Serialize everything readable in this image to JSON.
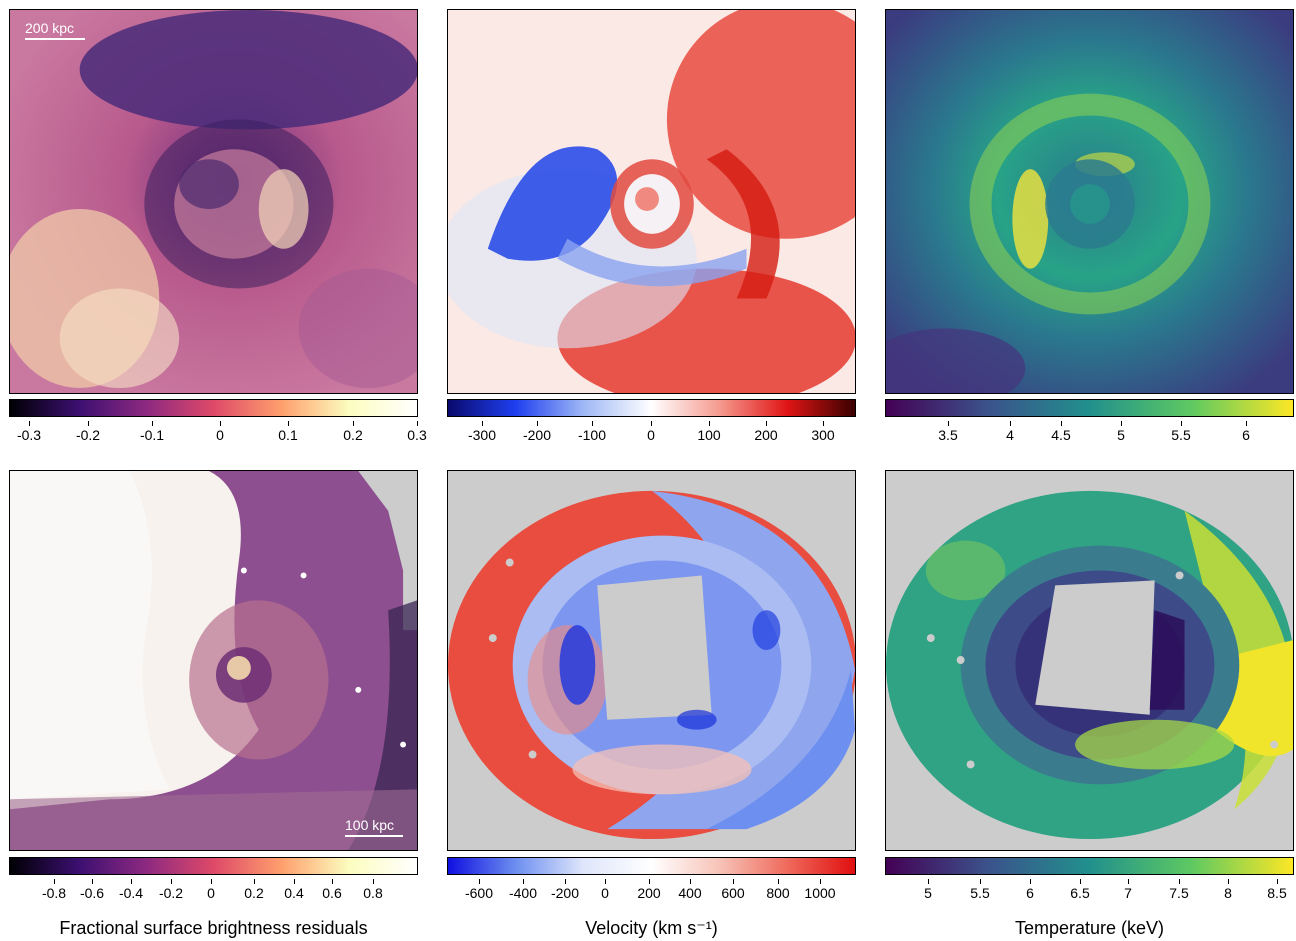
{
  "top_row": {
    "residual_panel": {
      "scale_label": "200 kpc",
      "colorbar_ticks": [
        "-0.3",
        "-0.2",
        "-0.1",
        "0",
        "0.1",
        "0.2",
        "0.3"
      ],
      "colormap": [
        "#000004",
        "#3b0f70",
        "#8c2981",
        "#de4968",
        "#fe9f6d",
        "#fcfdbf",
        "#ffffff"
      ]
    },
    "velocity_panel": {
      "colorbar_ticks": [
        "-300",
        "-200",
        "-100",
        "0",
        "100",
        "200",
        "300"
      ],
      "colormap": [
        "#0a0a6e",
        "#1f3ff0",
        "#9fb8f5",
        "#ffffff",
        "#f59a8f",
        "#e01515",
        "#3a0000"
      ]
    },
    "temperature_panel": {
      "colorbar_ticks": [
        "3.5",
        "4",
        "4.5",
        "5",
        "5.5",
        "6"
      ],
      "colormap": [
        "#440154",
        "#3b528b",
        "#21908d",
        "#5dc962",
        "#fde725"
      ]
    }
  },
  "bottom_row": {
    "residual_panel": {
      "scale_label": "100 kpc",
      "colorbar_ticks": [
        "-0.8",
        "-0.6",
        "-0.4",
        "-0.2",
        "0",
        "0.2",
        "0.4",
        "0.6",
        "0.8"
      ],
      "colormap": [
        "#000004",
        "#3b0f70",
        "#8c2981",
        "#de4968",
        "#fe9f6d",
        "#fcfdbf",
        "#ffffff"
      ]
    },
    "velocity_panel": {
      "colorbar_ticks": [
        "-600",
        "-400",
        "-200",
        "0",
        "200",
        "400",
        "600",
        "800",
        "1000"
      ],
      "colormap": [
        "#1010e0",
        "#6d8ff0",
        "#dfe6fb",
        "#ffffff",
        "#f7c3b8",
        "#ef6a5c",
        "#e00f0f"
      ]
    },
    "temperature_panel": {
      "colorbar_ticks": [
        "5",
        "5.5",
        "6",
        "6.5",
        "7",
        "7.5",
        "8",
        "8.5"
      ],
      "colormap": [
        "#440154",
        "#3b528b",
        "#21908d",
        "#5dc962",
        "#fde725"
      ]
    }
  },
  "column_labels": {
    "residuals": "Fractional surface brightness residuals",
    "velocity": "Velocity (km s⁻¹)",
    "temperature": "Temperature (keV)"
  },
  "mask_color": "#cccccc"
}
